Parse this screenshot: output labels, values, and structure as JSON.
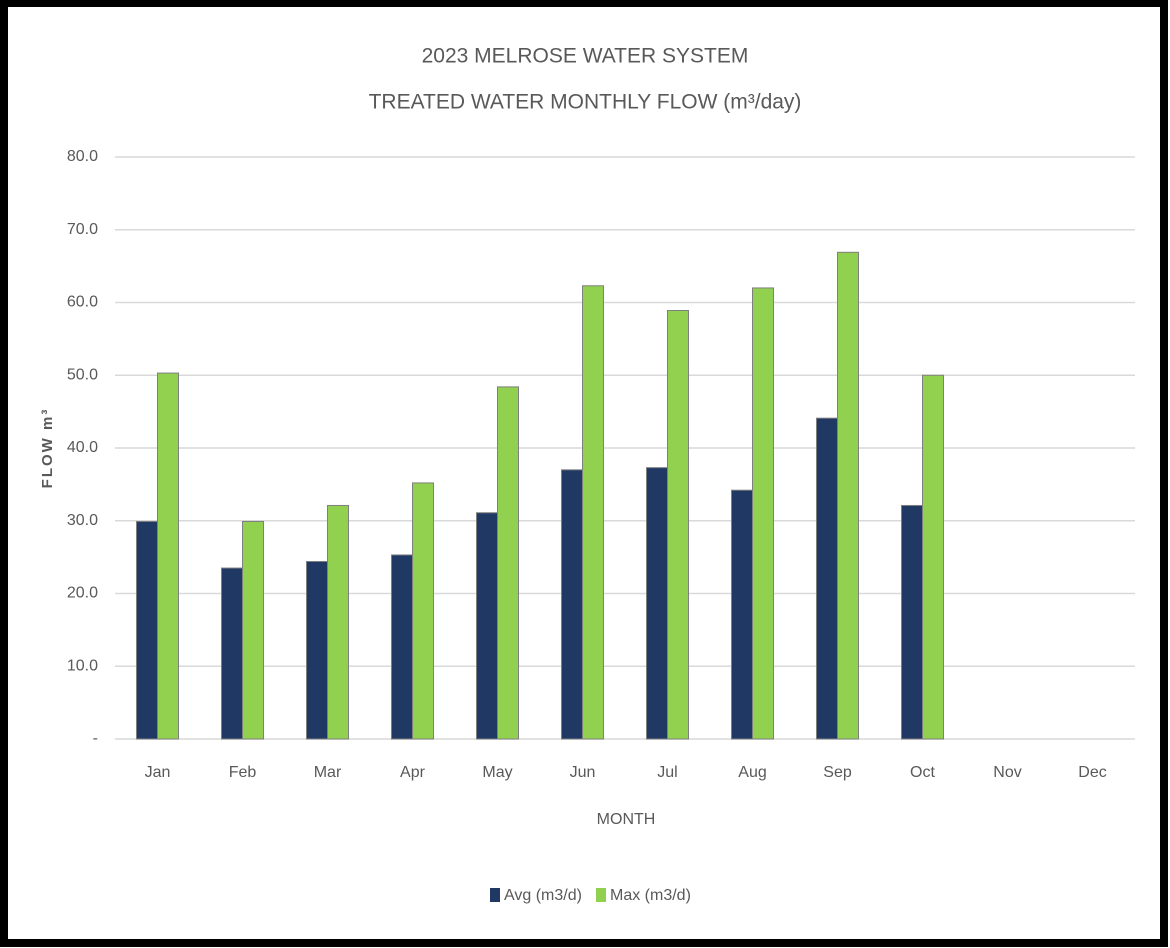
{
  "chart_data": {
    "type": "bar",
    "title": [
      "2023 MELROSE WATER SYSTEM",
      "TREATED WATER MONTHLY FLOW (m³/day)"
    ],
    "x_label": "MONTH",
    "y_label": "FLOW m³",
    "categories": [
      "Jan",
      "Feb",
      "Mar",
      "Apr",
      "May",
      "Jun",
      "Jul",
      "Aug",
      "Sep",
      "Oct",
      "Nov",
      "Dec"
    ],
    "series": [
      {
        "name": "Avg (m3/d)",
        "color": "#1f3864",
        "values": [
          29.9,
          23.5,
          24.4,
          25.3,
          31.1,
          37.0,
          37.3,
          34.2,
          44.1,
          32.1,
          null,
          null
        ]
      },
      {
        "name": "Max (m3/d)",
        "color": "#92d050",
        "values": [
          50.3,
          29.9,
          32.1,
          35.2,
          48.4,
          62.3,
          58.9,
          62.0,
          66.9,
          50.0,
          null,
          null
        ]
      }
    ],
    "ylim": [
      0,
      80
    ],
    "yticks": [
      {
        "value": 0,
        "label": "-"
      },
      {
        "value": 10,
        "label": "10.0"
      },
      {
        "value": 20,
        "label": "20.0"
      },
      {
        "value": 30,
        "label": "30.0"
      },
      {
        "value": 40,
        "label": "40.0"
      },
      {
        "value": 50,
        "label": "50.0"
      },
      {
        "value": 60,
        "label": "60.0"
      },
      {
        "value": 70,
        "label": "70.0"
      },
      {
        "value": 80,
        "label": "80.0"
      }
    ],
    "grid": true,
    "legend": "bottom"
  }
}
